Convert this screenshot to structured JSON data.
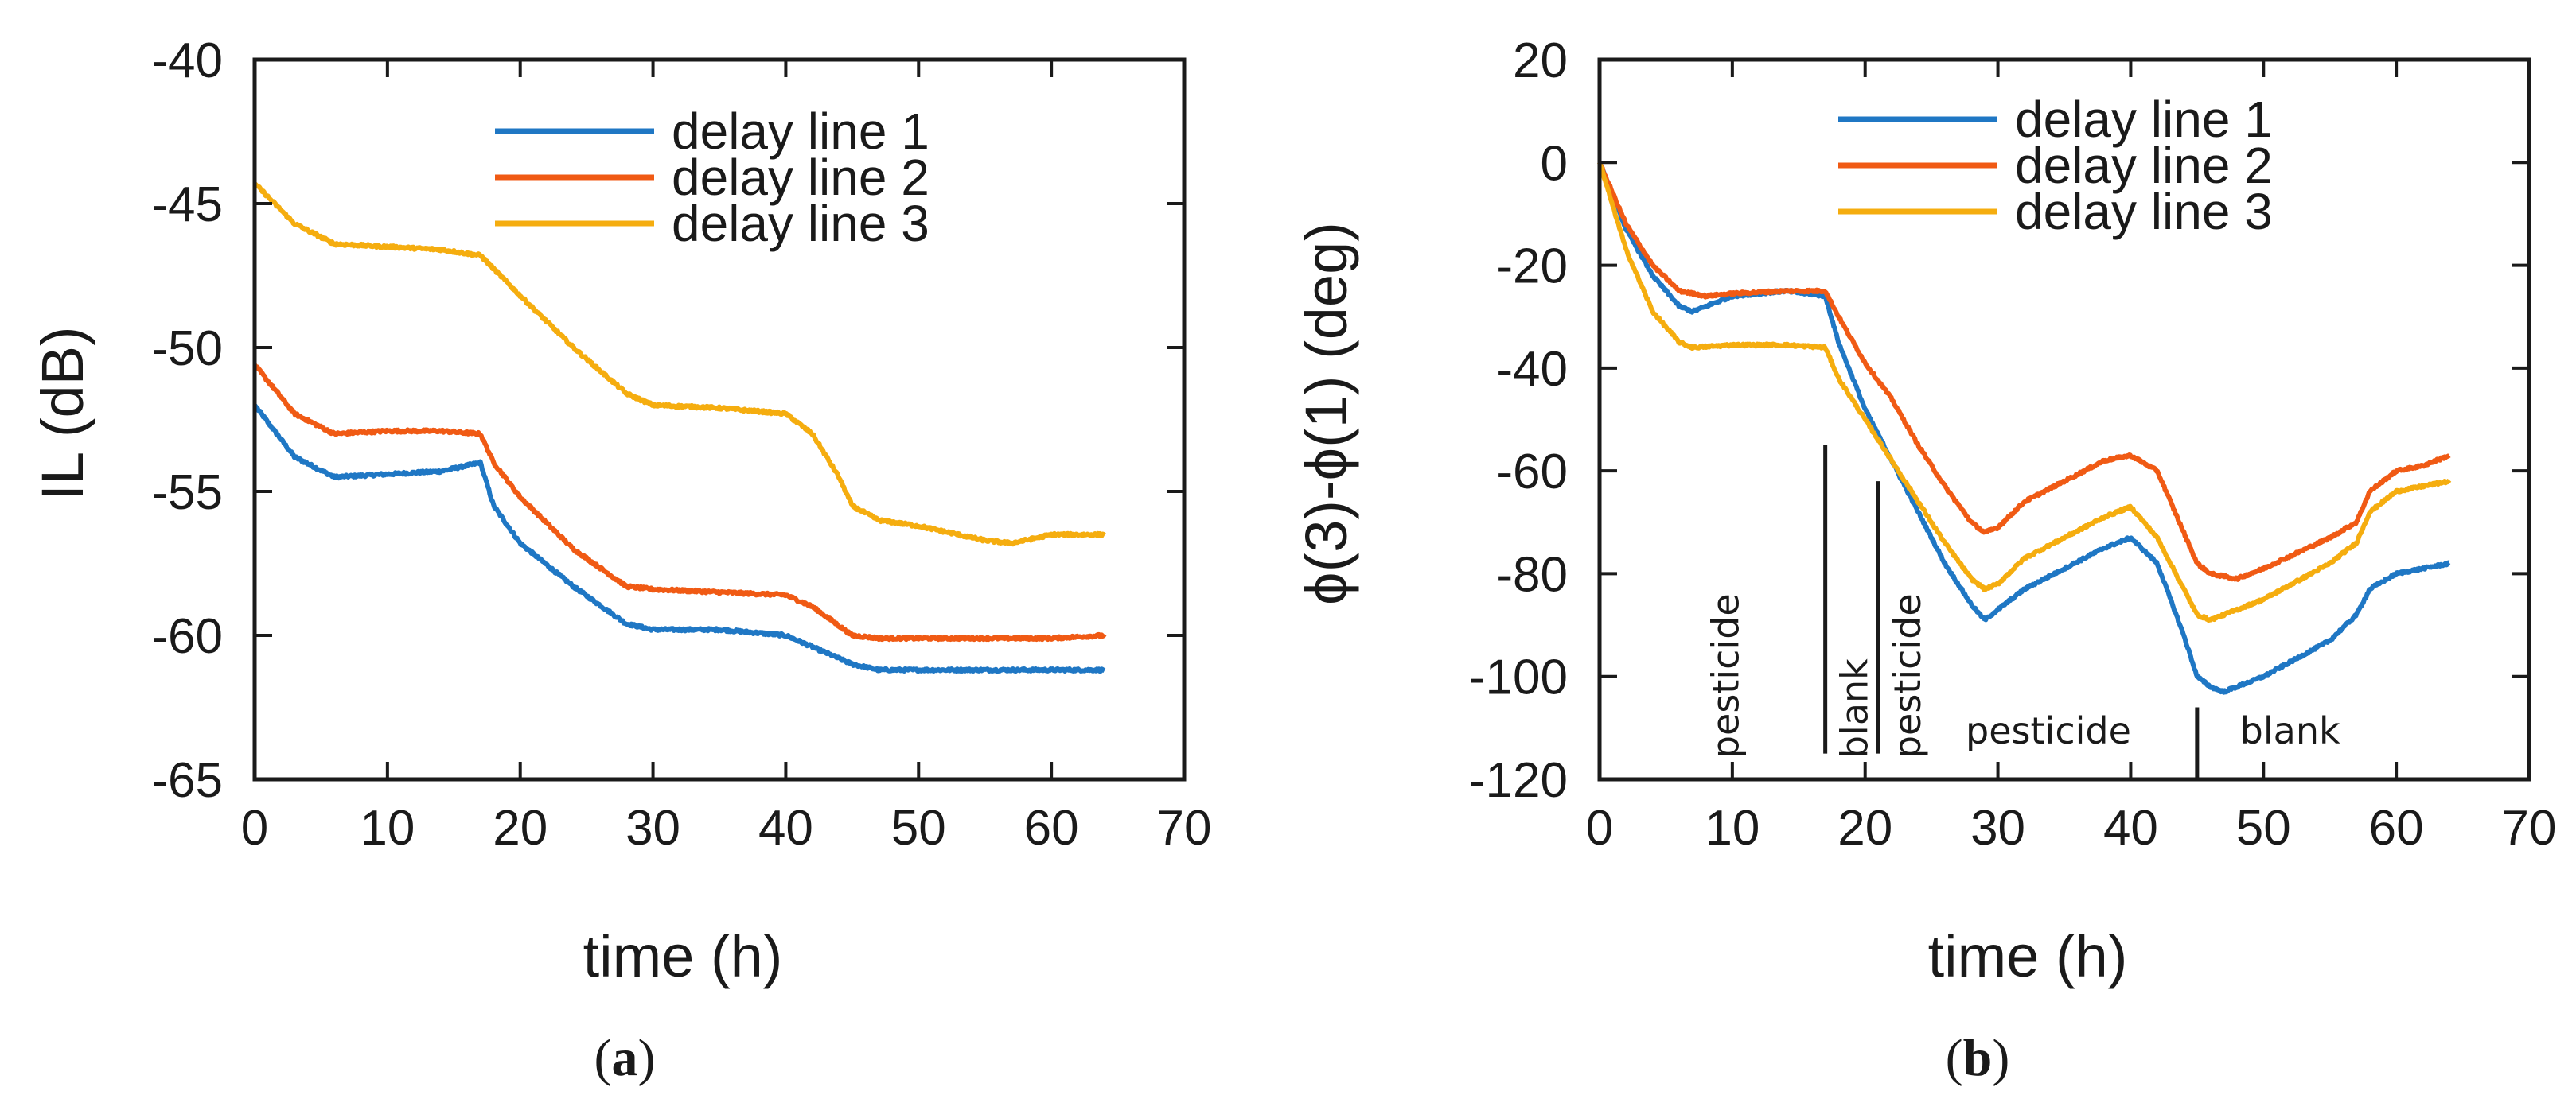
{
  "colors": {
    "series1": "#1f77c4",
    "series2": "#f05a14",
    "series3": "#f5ad0f",
    "axis": "#1a1a1a"
  },
  "chart_data": [
    {
      "type": "line",
      "caption": "a",
      "xlabel": "time (h)",
      "ylabel": "IL (dB)",
      "xlim": [
        0,
        70
      ],
      "ylim": [
        -65,
        -40
      ],
      "xticks": [
        0,
        10,
        20,
        30,
        40,
        50,
        60,
        70
      ],
      "yticks": [
        -65,
        -60,
        -55,
        -50,
        -45,
        -40
      ],
      "legend_position": "top-right",
      "series": [
        {
          "name": "delay line 1",
          "x": [
            0,
            3,
            6,
            10,
            14,
            17,
            18,
            20,
            24,
            28,
            30,
            35,
            40,
            42,
            45,
            47,
            50,
            55,
            60,
            64
          ],
          "y": [
            -52,
            -53.8,
            -54.5,
            -54.4,
            -54.3,
            -54,
            -55.5,
            -56.8,
            -58.3,
            -59.6,
            -59.8,
            -59.8,
            -60,
            -60.4,
            -61,
            -61.2,
            -61.2,
            -61.2,
            -61.2,
            -61.2
          ]
        },
        {
          "name": "delay line 2",
          "x": [
            0,
            3,
            6,
            10,
            14,
            17,
            18,
            20,
            24,
            28,
            30,
            35,
            40,
            42,
            45,
            47,
            50,
            55,
            60,
            64
          ],
          "y": [
            -50.6,
            -52.3,
            -53,
            -52.9,
            -52.9,
            -53,
            -54,
            -55.2,
            -57,
            -58.3,
            -58.4,
            -58.5,
            -58.6,
            -59,
            -60,
            -60.1,
            -60.1,
            -60.1,
            -60.1,
            -60
          ]
        },
        {
          "name": "delay line 3",
          "x": [
            0,
            3,
            6,
            10,
            14,
            17,
            20,
            24,
            28,
            30,
            35,
            40,
            42,
            44,
            45,
            47,
            50,
            55,
            57,
            60,
            64
          ],
          "y": [
            -44.3,
            -45.7,
            -46.4,
            -46.5,
            -46.6,
            -46.8,
            -48.2,
            -50,
            -51.6,
            -52,
            -52.1,
            -52.3,
            -53,
            -54.5,
            -55.5,
            -56,
            -56.2,
            -56.7,
            -56.8,
            -56.5,
            -56.5
          ]
        }
      ]
    },
    {
      "type": "line",
      "caption": "b",
      "xlabel": "time (h)",
      "ylabel": "ϕ(3)-ϕ(1) (deg)",
      "xlim": [
        0,
        70
      ],
      "ylim": [
        -120,
        20
      ],
      "xticks": [
        0,
        10,
        20,
        30,
        40,
        50,
        60,
        70
      ],
      "yticks": [
        -120,
        -100,
        -80,
        -60,
        -40,
        -20,
        0,
        20
      ],
      "legend_position": "top-right",
      "series": [
        {
          "name": "delay line 1",
          "x": [
            0,
            2,
            4,
            6,
            7,
            10,
            14,
            17,
            18,
            20,
            22,
            24,
            26,
            28,
            29,
            30,
            32,
            35,
            38,
            40,
            42,
            44,
            45,
            46,
            47,
            50,
            55,
            57,
            58,
            60,
            62,
            64
          ],
          "y": [
            0,
            -13,
            -22,
            -28,
            -29,
            -26,
            -25,
            -26,
            -35,
            -48,
            -58,
            -68,
            -78,
            -86,
            -89,
            -87,
            -83,
            -79,
            -75,
            -73,
            -78,
            -92,
            -100,
            -102,
            -103,
            -100,
            -93,
            -88,
            -83,
            -80,
            -79,
            -78
          ]
        },
        {
          "name": "delay line 2",
          "x": [
            0,
            2,
            4,
            6,
            8,
            10,
            14,
            17,
            18,
            20,
            22,
            24,
            26,
            28,
            29,
            30,
            32,
            35,
            38,
            40,
            42,
            44,
            45,
            46,
            48,
            50,
            55,
            57,
            58,
            60,
            62,
            64
          ],
          "y": [
            0,
            -12,
            -20,
            -25,
            -26,
            -25.5,
            -25,
            -25,
            -30,
            -39,
            -46,
            -55,
            -63,
            -70,
            -72,
            -71,
            -66,
            -62,
            -58,
            -57,
            -60,
            -72,
            -78,
            -80,
            -81,
            -79,
            -73,
            -70,
            -64,
            -60,
            -59,
            -57
          ]
        },
        {
          "name": "delay line 3",
          "x": [
            0,
            2,
            4,
            6,
            7,
            10,
            14,
            17,
            18,
            20,
            22,
            24,
            26,
            28,
            29,
            30,
            32,
            35,
            38,
            40,
            42,
            44,
            45,
            46,
            47,
            50,
            55,
            57,
            58,
            60,
            62,
            64
          ],
          "y": [
            0,
            -17,
            -29,
            -35,
            -36,
            -35.5,
            -35.5,
            -36,
            -42,
            -50,
            -58,
            -66,
            -74,
            -81,
            -83,
            -82,
            -77,
            -73,
            -69,
            -67,
            -73,
            -83,
            -88,
            -89,
            -88,
            -85,
            -78,
            -74,
            -68,
            -64,
            -63,
            -62
          ]
        }
      ],
      "annotations": [
        {
          "text": "pesticide",
          "x": 9.5,
          "rotated": true
        },
        {
          "text": "blank",
          "x": 19.2,
          "rotated": true
        },
        {
          "text": "pesticide",
          "x": 23.2,
          "rotated": true
        },
        {
          "text": "pesticide",
          "x": 33.8,
          "rotated": false
        },
        {
          "text": "blank",
          "x": 52,
          "rotated": false
        }
      ],
      "dividers": [
        {
          "x": 17,
          "y_from": -55,
          "y_to": -115
        },
        {
          "x": 21,
          "y_from": -62,
          "y_to": -115
        },
        {
          "x": 45,
          "y_from": -106,
          "y_to": -120
        }
      ]
    }
  ]
}
